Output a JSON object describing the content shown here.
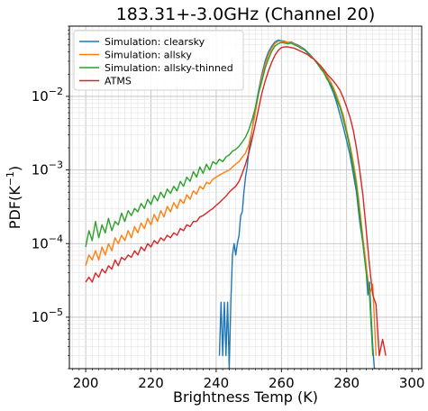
{
  "chart_data": {
    "type": "line",
    "title": "183.31+-3.0GHz (Channel 20)",
    "xlabel": "Brightness Temp (K)",
    "ylabel_main": "PDF(K",
    "ylabel_exp": "−1",
    "ylabel_close": ")",
    "xlim": [
      195,
      303
    ],
    "ylim": [
      2e-06,
      0.09
    ],
    "yscale": "log",
    "grid": true,
    "legend_position": "top-left",
    "x_ticks": [
      200,
      220,
      240,
      260,
      280,
      300
    ],
    "x_tick_labels": [
      "200",
      "220",
      "240",
      "260",
      "280",
      "300"
    ],
    "y_ticks": [
      1e-05,
      0.0001,
      0.001,
      0.01
    ],
    "y_tick_labels": [
      {
        "base": "10",
        "exp": "−5"
      },
      {
        "base": "10",
        "exp": "−4"
      },
      {
        "base": "10",
        "exp": "−3"
      },
      {
        "base": "10",
        "exp": "−2"
      }
    ],
    "series": [
      {
        "name": "Simulation: clearsky",
        "color": "#1f77b4",
        "x": [
          241,
          241.5,
          242,
          242.5,
          243,
          243.5,
          244,
          244.5,
          245,
          245.5,
          246,
          246.5,
          247,
          247.5,
          248,
          248.5,
          249,
          249.5,
          250,
          251,
          252,
          253,
          254,
          255,
          256,
          257,
          258,
          259,
          260,
          261,
          262,
          263,
          264,
          265,
          266,
          267,
          268,
          269,
          270,
          271,
          272,
          273,
          274,
          275,
          276,
          277,
          278,
          279,
          280,
          281,
          282,
          283,
          284,
          285,
          286,
          286.5,
          287,
          287.5,
          288,
          288.5,
          289
        ],
        "y": [
          3e-06,
          1.6e-05,
          3e-06,
          1.6e-05,
          3e-06,
          1.6e-05,
          2e-06,
          1.6e-05,
          7e-05,
          0.0001,
          7e-05,
          0.0001,
          0.00013,
          0.00024,
          0.00027,
          0.0005,
          0.0008,
          0.0011,
          0.0018,
          0.0035,
          0.007,
          0.012,
          0.02,
          0.03,
          0.04,
          0.048,
          0.055,
          0.058,
          0.057,
          0.056,
          0.054,
          0.055,
          0.052,
          0.05,
          0.047,
          0.044,
          0.04,
          0.036,
          0.032,
          0.028,
          0.024,
          0.021,
          0.018,
          0.014,
          0.011,
          0.008,
          0.0055,
          0.0038,
          0.0025,
          0.0016,
          0.0009,
          0.0005,
          0.0002,
          0.0001,
          4e-05,
          2e-05,
          3e-05,
          1e-05,
          4e-06,
          2e-06,
          2e-06
        ]
      },
      {
        "name": "Simulation: allsky",
        "color": "#ff7f0e",
        "x": [
          200,
          201,
          202,
          203,
          204,
          205,
          206,
          207,
          208,
          209,
          210,
          211,
          212,
          213,
          214,
          215,
          216,
          217,
          218,
          219,
          220,
          221,
          222,
          223,
          224,
          225,
          226,
          227,
          228,
          229,
          230,
          231,
          232,
          233,
          234,
          235,
          236,
          237,
          238,
          239,
          240,
          241,
          242,
          243,
          244,
          245,
          246,
          247,
          248,
          249,
          250,
          251,
          252,
          253,
          254,
          255,
          256,
          257,
          258,
          259,
          260,
          261,
          262,
          263,
          264,
          265,
          266,
          267,
          268,
          269,
          270,
          271,
          272,
          273,
          274,
          275,
          276,
          277,
          278,
          279,
          280,
          281,
          282,
          283,
          284,
          285,
          286,
          287,
          288,
          289
        ],
        "y": [
          5e-05,
          7e-05,
          6e-05,
          8e-05,
          6e-05,
          9e-05,
          7e-05,
          0.0001,
          8e-05,
          0.00012,
          0.0001,
          0.00013,
          0.00011,
          0.00015,
          0.00012,
          0.00017,
          0.00014,
          0.00019,
          0.00016,
          0.00022,
          0.00018,
          0.00025,
          0.0002,
          0.00028,
          0.00023,
          0.00032,
          0.00027,
          0.00036,
          0.0003,
          0.0004,
          0.00035,
          0.00046,
          0.0004,
          0.00052,
          0.00047,
          0.0006,
          0.00055,
          0.00068,
          0.00065,
          0.00075,
          0.0008,
          0.00085,
          0.0009,
          0.00095,
          0.001,
          0.0011,
          0.0012,
          0.0013,
          0.0015,
          0.0017,
          0.0022,
          0.0035,
          0.006,
          0.011,
          0.018,
          0.027,
          0.036,
          0.045,
          0.052,
          0.056,
          0.056,
          0.055,
          0.054,
          0.054,
          0.051,
          0.049,
          0.046,
          0.043,
          0.039,
          0.035,
          0.032,
          0.029,
          0.025,
          0.022,
          0.019,
          0.016,
          0.013,
          0.01,
          0.0075,
          0.0055,
          0.0035,
          0.0022,
          0.0013,
          0.0007,
          0.0003,
          0.00012,
          5e-05,
          2e-05,
          2.8e-05,
          3e-06
        ]
      },
      {
        "name": "Simulation: allsky-thinned",
        "color": "#2ca02c",
        "x": [
          200,
          201,
          202,
          203,
          204,
          205,
          206,
          207,
          208,
          209,
          210,
          211,
          212,
          213,
          214,
          215,
          216,
          217,
          218,
          219,
          220,
          221,
          222,
          223,
          224,
          225,
          226,
          227,
          228,
          229,
          230,
          231,
          232,
          233,
          234,
          235,
          236,
          237,
          238,
          239,
          240,
          241,
          242,
          243,
          244,
          245,
          246,
          247,
          248,
          249,
          250,
          251,
          252,
          253,
          254,
          255,
          256,
          257,
          258,
          259,
          260,
          261,
          262,
          263,
          264,
          265,
          266,
          267,
          268,
          269,
          270,
          271,
          272,
          273,
          274,
          275,
          276,
          277,
          278,
          279,
          280,
          281,
          282,
          283,
          284,
          285,
          286,
          287,
          288
        ],
        "y": [
          9e-05,
          0.00015,
          0.00011,
          0.0002,
          0.00012,
          0.00018,
          0.00014,
          0.00022,
          0.00015,
          0.0002,
          0.00018,
          0.00026,
          0.0002,
          0.00028,
          0.00024,
          0.0003,
          0.00027,
          0.00035,
          0.0003,
          0.0004,
          0.00034,
          0.00045,
          0.00038,
          0.0005,
          0.00042,
          0.00055,
          0.00048,
          0.0006,
          0.00052,
          0.0007,
          0.0006,
          0.0008,
          0.0007,
          0.00095,
          0.0008,
          0.0011,
          0.0009,
          0.0012,
          0.001,
          0.0013,
          0.0012,
          0.0014,
          0.0013,
          0.0015,
          0.0016,
          0.0018,
          0.0019,
          0.0021,
          0.0024,
          0.0028,
          0.0035,
          0.0048,
          0.007,
          0.011,
          0.016,
          0.024,
          0.032,
          0.041,
          0.048,
          0.052,
          0.054,
          0.053,
          0.052,
          0.053,
          0.05,
          0.048,
          0.045,
          0.043,
          0.039,
          0.034,
          0.032,
          0.028,
          0.024,
          0.021,
          0.017,
          0.015,
          0.012,
          0.009,
          0.007,
          0.0048,
          0.0032,
          0.002,
          0.0011,
          0.0006,
          0.00025,
          0.0001,
          4e-05,
          2e-05,
          3e-06
        ]
      },
      {
        "name": "ATMS",
        "color": "#d62728",
        "x": [
          200,
          201,
          202,
          203,
          204,
          205,
          206,
          207,
          208,
          209,
          210,
          211,
          212,
          213,
          214,
          215,
          216,
          217,
          218,
          219,
          220,
          221,
          222,
          223,
          224,
          225,
          226,
          227,
          228,
          229,
          230,
          231,
          232,
          233,
          234,
          235,
          236,
          237,
          238,
          239,
          240,
          241,
          242,
          243,
          244,
          245,
          246,
          247,
          248,
          249,
          250,
          251,
          252,
          253,
          254,
          255,
          256,
          257,
          258,
          259,
          260,
          261,
          262,
          263,
          264,
          265,
          266,
          267,
          268,
          269,
          270,
          271,
          272,
          273,
          274,
          275,
          276,
          277,
          278,
          279,
          280,
          281,
          282,
          283,
          284,
          285,
          286,
          287,
          288,
          289,
          290,
          291,
          292
        ],
        "y": [
          3e-05,
          3.5e-05,
          3e-05,
          4e-05,
          3.5e-05,
          4.5e-05,
          4e-05,
          5e-05,
          4.5e-05,
          6e-05,
          5e-05,
          6.5e-05,
          6e-05,
          7e-05,
          6.5e-05,
          8e-05,
          7e-05,
          9e-05,
          8e-05,
          0.0001,
          9e-05,
          0.00011,
          0.0001,
          0.00012,
          0.00011,
          0.00013,
          0.00012,
          0.00014,
          0.00013,
          0.00016,
          0.00015,
          0.00018,
          0.00017,
          0.0002,
          0.0002,
          0.00023,
          0.00024,
          0.00026,
          0.00028,
          0.0003,
          0.00033,
          0.00036,
          0.0004,
          0.00044,
          0.0005,
          0.00055,
          0.0006,
          0.0007,
          0.0009,
          0.0012,
          0.0017,
          0.0026,
          0.0042,
          0.0068,
          0.011,
          0.016,
          0.022,
          0.029,
          0.036,
          0.042,
          0.046,
          0.047,
          0.047,
          0.046,
          0.045,
          0.043,
          0.041,
          0.039,
          0.037,
          0.034,
          0.032,
          0.029,
          0.026,
          0.023,
          0.02,
          0.018,
          0.016,
          0.014,
          0.012,
          0.0095,
          0.0072,
          0.0052,
          0.0035,
          0.002,
          0.001,
          0.00045,
          0.00015,
          5e-05,
          2e-05,
          1.5e-05,
          3e-06,
          5e-06,
          3e-06
        ]
      }
    ]
  }
}
